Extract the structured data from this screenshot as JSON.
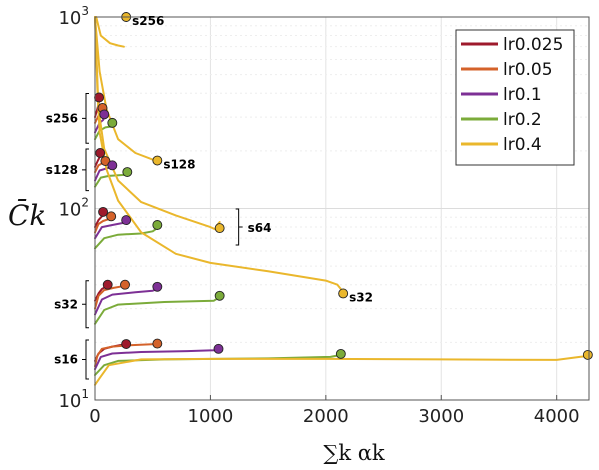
{
  "chart_data": {
    "type": "line",
    "xlabel": "∑k αk",
    "ylabel": "C̄k",
    "xlim": [
      0,
      4280
    ],
    "ylim": [
      10,
      1000
    ],
    "yscale": "log",
    "grid": true,
    "legend_position": "top-right",
    "x_ticks": [
      0,
      1000,
      2000,
      3000,
      4000
    ],
    "y_ticks": [
      {
        "value": 10,
        "base": "10",
        "exp": "1"
      },
      {
        "value": 100,
        "base": "10",
        "exp": "2"
      },
      {
        "value": 1000,
        "base": "10",
        "exp": "3"
      }
    ],
    "series": [
      {
        "name": "lr0.025",
        "color": "#9e1a2c",
        "curves": [
          {
            "group": "s16",
            "points": [
              [
                0,
                16
              ],
              [
                30,
                17.5
              ],
              [
                80,
                18.5
              ],
              [
                150,
                19
              ],
              [
                270,
                19.6
              ]
            ],
            "end": [
              270,
              19.6
            ]
          },
          {
            "group": "s32",
            "points": [
              [
                0,
                33
              ],
              [
                30,
                36
              ],
              [
                60,
                38
              ],
              [
                110,
                39.5
              ]
            ],
            "end": [
              110,
              40
            ]
          },
          {
            "group": "s64",
            "points": [
              [
                0,
                80
              ],
              [
                30,
                87
              ],
              [
                60,
                91
              ],
              [
                70,
                95
              ]
            ],
            "end": [
              70,
              96
            ]
          },
          {
            "group": "s128",
            "points": [
              [
                0,
                165
              ],
              [
                25,
                178
              ],
              [
                40,
                185
              ],
              [
                45,
                190
              ]
            ],
            "end": [
              45,
              195
            ]
          },
          {
            "group": "s256",
            "points": [
              [
                0,
                300
              ],
              [
                20,
                330
              ],
              [
                30,
                350
              ],
              [
                35,
                365
              ]
            ],
            "end": [
              35,
              380
            ]
          }
        ]
      },
      {
        "name": "lr0.05",
        "color": "#d4622a",
        "curves": [
          {
            "group": "s16",
            "points": [
              [
                0,
                15
              ],
              [
                20,
                17
              ],
              [
                60,
                18.5
              ],
              [
                150,
                19
              ],
              [
                300,
                19.3
              ],
              [
                540,
                19.6
              ]
            ],
            "end": [
              540,
              19.7
            ]
          },
          {
            "group": "s32",
            "points": [
              [
                0,
                30
              ],
              [
                30,
                35
              ],
              [
                80,
                37.5
              ],
              [
                160,
                38.5
              ],
              [
                260,
                39.5
              ]
            ],
            "end": [
              260,
              40
            ]
          },
          {
            "group": "s64",
            "points": [
              [
                0,
                75
              ],
              [
                30,
                83
              ],
              [
                70,
                86
              ],
              [
                120,
                88
              ],
              [
                140,
                89
              ]
            ],
            "end": [
              140,
              91
            ]
          },
          {
            "group": "s128",
            "points": [
              [
                0,
                155
              ],
              [
                30,
                168
              ],
              [
                60,
                172
              ],
              [
                90,
                174
              ]
            ],
            "end": [
              90,
              177
            ]
          },
          {
            "group": "s256",
            "points": [
              [
                0,
                280
              ],
              [
                30,
                305
              ],
              [
                60,
                318
              ],
              [
                65,
                325
              ]
            ],
            "end": [
              65,
              335
            ]
          }
        ]
      },
      {
        "name": "lr0.1",
        "color": "#7d3095",
        "curves": [
          {
            "group": "s16",
            "points": [
              [
                0,
                14.5
              ],
              [
                50,
                16.8
              ],
              [
                150,
                17.5
              ],
              [
                400,
                17.8
              ],
              [
                800,
                18
              ],
              [
                1030,
                18.2
              ],
              [
                1070,
                18.5
              ]
            ],
            "end": [
              1070,
              18.5
            ]
          },
          {
            "group": "s32",
            "points": [
              [
                0,
                28
              ],
              [
                60,
                33.5
              ],
              [
                150,
                35.5
              ],
              [
                350,
                36.5
              ],
              [
                500,
                37.2
              ],
              [
                540,
                38
              ]
            ],
            "end": [
              540,
              39
            ]
          },
          {
            "group": "s64",
            "points": [
              [
                0,
                70
              ],
              [
                60,
                80
              ],
              [
                150,
                82
              ],
              [
                240,
                84
              ],
              [
                270,
                86
              ]
            ],
            "end": [
              270,
              87
            ]
          },
          {
            "group": "s128",
            "points": [
              [
                0,
                140
              ],
              [
                40,
                158
              ],
              [
                100,
                162
              ],
              [
                130,
                164
              ],
              [
                150,
                166
              ]
            ],
            "end": [
              150,
              168
            ]
          },
          {
            "group": "s256",
            "points": [
              [
                0,
                250
              ],
              [
                40,
                280
              ],
              [
                70,
                290
              ],
              [
                80,
                300
              ]
            ],
            "end": [
              80,
              310
            ]
          }
        ]
      },
      {
        "name": "lr0.2",
        "color": "#7bab3a",
        "curves": [
          {
            "group": "s16",
            "points": [
              [
                0,
                13.5
              ],
              [
                80,
                15.2
              ],
              [
                200,
                16
              ],
              [
                600,
                16.3
              ],
              [
                1500,
                16.5
              ],
              [
                2040,
                16.8
              ],
              [
                2130,
                17.2
              ]
            ],
            "end": [
              2130,
              17.4
            ]
          },
          {
            "group": "s32",
            "points": [
              [
                0,
                25
              ],
              [
                80,
                29.5
              ],
              [
                200,
                31.5
              ],
              [
                600,
                32.5
              ],
              [
                1030,
                33
              ],
              [
                1080,
                34.5
              ]
            ],
            "end": [
              1080,
              35
            ]
          },
          {
            "group": "s64",
            "points": [
              [
                0,
                62
              ],
              [
                80,
                70
              ],
              [
                200,
                73
              ],
              [
                400,
                74
              ],
              [
                500,
                76
              ],
              [
                540,
                79
              ]
            ],
            "end": [
              540,
              82
            ]
          },
          {
            "group": "s128",
            "points": [
              [
                0,
                130
              ],
              [
                50,
                145
              ],
              [
                120,
                148
              ],
              [
                270,
                150
              ],
              [
                280,
                152
              ]
            ],
            "end": [
              280,
              155
            ]
          },
          {
            "group": "s256",
            "points": [
              [
                0,
                230
              ],
              [
                40,
                255
              ],
              [
                90,
                265
              ],
              [
                140,
                268
              ],
              [
                150,
                275
              ]
            ],
            "end": [
              150,
              280
            ]
          }
        ]
      },
      {
        "name": "lr0.4",
        "color": "#eab72c",
        "curves": [
          {
            "group": "s16",
            "points": [
              [
                0,
                12
              ],
              [
                40,
                13
              ],
              [
                120,
                15.2
              ],
              [
                400,
                16.3
              ],
              [
                1000,
                16.4
              ],
              [
                2000,
                16.4
              ],
              [
                3000,
                16.3
              ],
              [
                4000,
                16.2
              ],
              [
                4200,
                16.8
              ],
              [
                4280,
                17
              ]
            ],
            "end": [
              4270,
              17.2
            ]
          },
          {
            "group": "s32",
            "points": [
              [
                0,
                1000
              ],
              [
                20,
                430
              ],
              [
                40,
                250
              ],
              [
                100,
                160
              ],
              [
                200,
                110
              ],
              [
                400,
                75
              ],
              [
                700,
                58
              ],
              [
                1000,
                52
              ],
              [
                1500,
                47
              ],
              [
                2000,
                42
              ],
              [
                2100,
                40
              ],
              [
                2130,
                38
              ]
            ],
            "end": [
              2150,
              36
            ]
          },
          {
            "group": "s64",
            "points": [
              [
                0,
                1000
              ],
              [
                30,
                330
              ],
              [
                80,
                205
              ],
              [
                200,
                140
              ],
              [
                400,
                108
              ],
              [
                700,
                92
              ],
              [
                1000,
                80
              ],
              [
                1040,
                78
              ],
              [
                1060,
                82
              ],
              [
                1080,
                85
              ]
            ],
            "end": [
              1080,
              79
            ]
          },
          {
            "group": "s128",
            "points": [
              [
                0,
                1000
              ],
              [
                40,
                520
              ],
              [
                100,
                330
              ],
              [
                200,
                230
              ],
              [
                350,
                195
              ],
              [
                500,
                180
              ]
            ],
            "end": [
              540,
              178
            ]
          },
          {
            "group": "s256",
            "points": [
              [
                10,
                1000
              ],
              [
                50,
                800
              ],
              [
                130,
                730
              ],
              [
                200,
                710
              ],
              [
                250,
                700
              ]
            ],
            "end": [
              270,
              1000
            ]
          }
        ]
      }
    ],
    "annotations": [
      {
        "text": "s256",
        "x": 270,
        "y": 1000,
        "side": "right"
      },
      {
        "text": "s128",
        "x": 540,
        "y": 178,
        "side": "right"
      },
      {
        "text": "s64",
        "x": 1080,
        "y": 80,
        "side": "bracket-right"
      },
      {
        "text": "s32",
        "x": 2150,
        "y": 36,
        "side": "right"
      },
      {
        "text": "s256",
        "y_low": 230,
        "y_high": 380,
        "side": "bracket-left"
      },
      {
        "text": "s128",
        "y_low": 130,
        "y_high": 195,
        "side": "bracket-left"
      },
      {
        "text": "s32",
        "y_low": 25,
        "y_high": 40,
        "side": "bracket-left"
      },
      {
        "text": "s16",
        "y_low": 13.5,
        "y_high": 19.6,
        "side": "bracket-left"
      }
    ]
  }
}
